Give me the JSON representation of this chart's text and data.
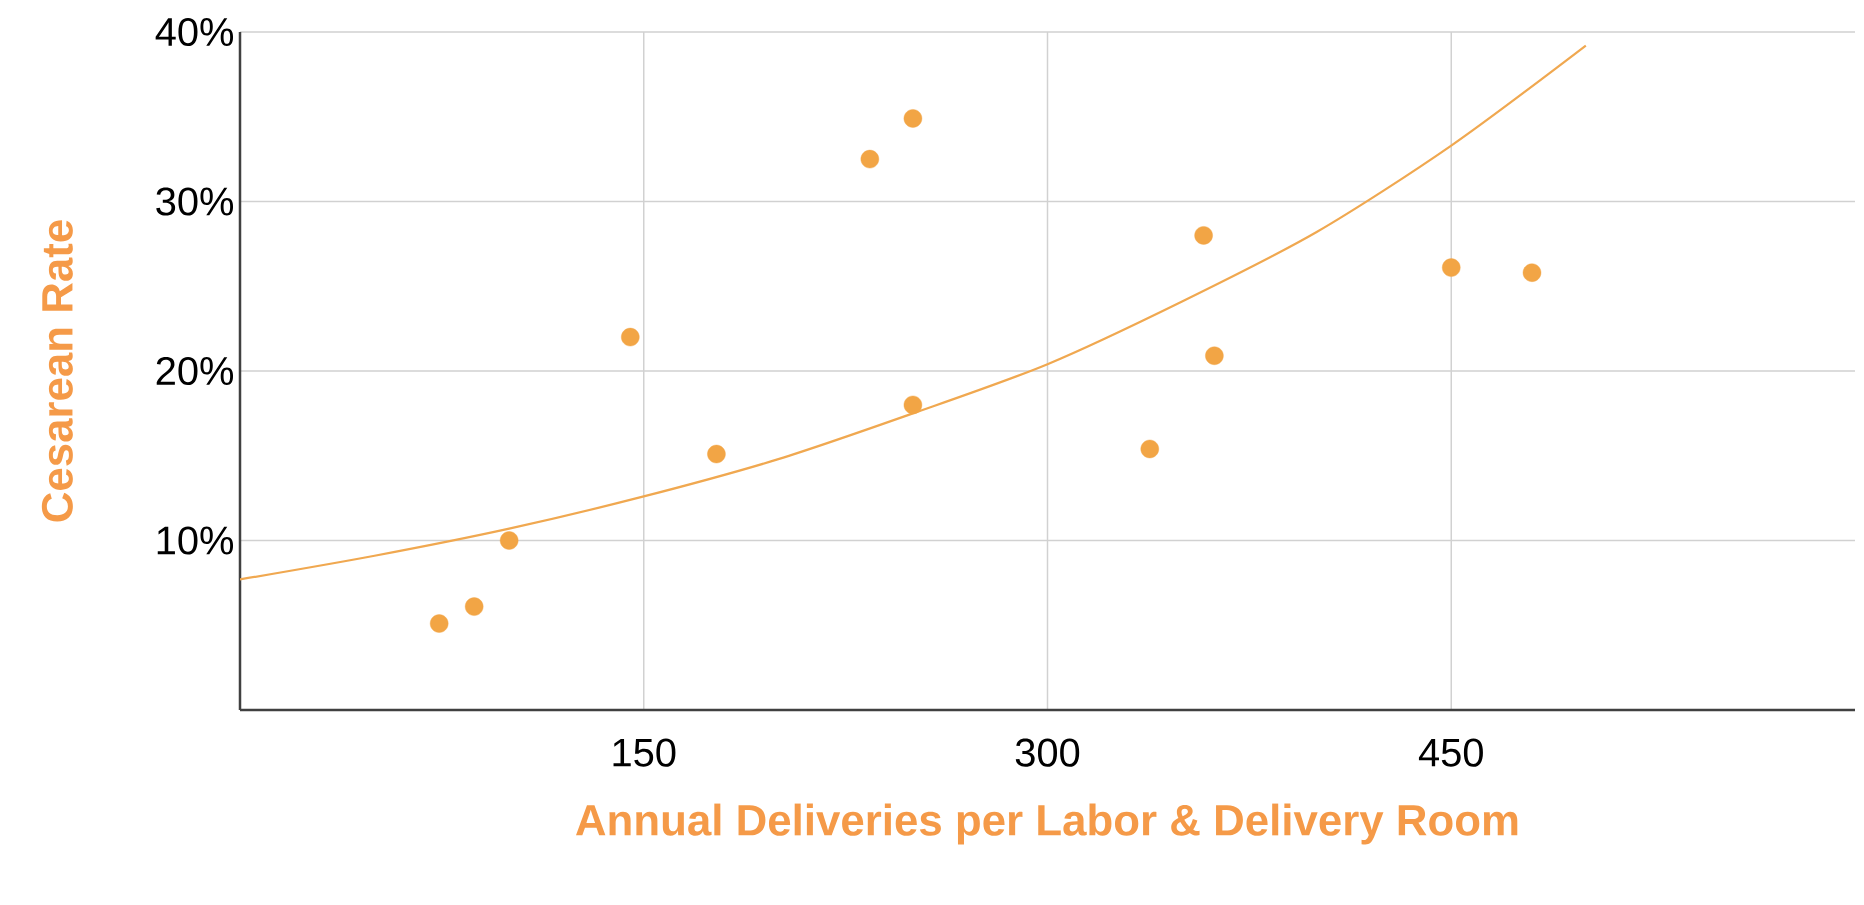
{
  "chart_data": {
    "type": "scatter",
    "xlabel": "Annual Deliveries per Labor & Delivery Room",
    "ylabel": "Cesarean Rate",
    "xlim": [
      0,
      600
    ],
    "ylim": [
      0,
      40
    ],
    "xticks": [
      150,
      300,
      450
    ],
    "yticks": [
      {
        "value": 10,
        "label": "10%"
      },
      {
        "value": 20,
        "label": "20%"
      },
      {
        "value": 30,
        "label": "30%"
      },
      {
        "value": 40,
        "label": "40%"
      }
    ],
    "grid": true,
    "series": [
      {
        "marker": "circle",
        "color": "#f2a545",
        "x": [
          74,
          87,
          100,
          145,
          177,
          234,
          250,
          250,
          338,
          358,
          362,
          450,
          480
        ],
        "values": [
          5.1,
          6.1,
          10.0,
          22.0,
          15.1,
          32.5,
          34.9,
          18.0,
          15.4,
          28.0,
          20.9,
          26.1,
          25.8
        ]
      },
      {
        "type": "line",
        "marker": "none",
        "color": "#f0a850",
        "x": [
          0,
          50,
          100,
          150,
          200,
          250,
          300,
          350,
          400,
          450,
          500
        ],
        "values": [
          7.7,
          9.1,
          10.7,
          12.6,
          14.8,
          17.5,
          20.4,
          24.1,
          28.2,
          33.3,
          39.2
        ]
      }
    ]
  }
}
